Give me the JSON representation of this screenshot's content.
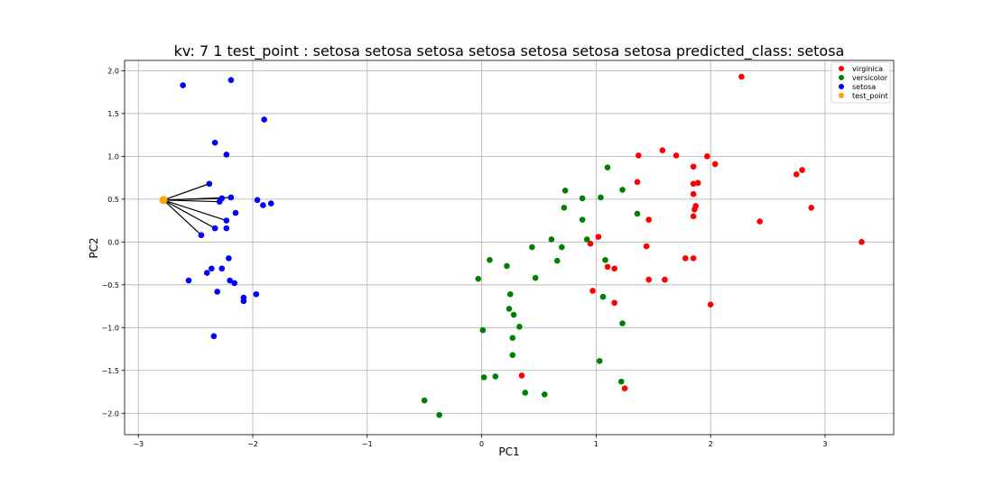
{
  "chart_data": {
    "type": "scatter",
    "title": "kv: 7 1 test_point : setosa setosa setosa setosa setosa setosa setosa   predicted_class: setosa",
    "xlabel": "PC1",
    "ylabel": "PC2",
    "xlim": [
      -3.12,
      3.6
    ],
    "ylim": [
      -2.25,
      2.12
    ],
    "xticks": [
      -3,
      -2,
      -1,
      0,
      1,
      2,
      3
    ],
    "yticks": [
      -2.0,
      -1.5,
      -1.0,
      -0.5,
      0.0,
      0.5,
      1.0,
      1.5,
      2.0
    ],
    "xtick_labels": [
      "−3",
      "−2",
      "−1",
      "0",
      "1",
      "2",
      "3"
    ],
    "ytick_labels": [
      "−2.0",
      "−1.5",
      "−1.0",
      "−0.5",
      "0.0",
      "0.5",
      "1.0",
      "1.5",
      "2.0"
    ],
    "grid": true,
    "legend_position": "top-right",
    "series": [
      {
        "name": "virginica",
        "color": "#ff0000",
        "points": [
          [
            2.27,
            1.93
          ],
          [
            1.58,
            1.07
          ],
          [
            1.7,
            1.01
          ],
          [
            1.37,
            1.01
          ],
          [
            1.97,
            1.0
          ],
          [
            2.04,
            0.91
          ],
          [
            1.85,
            0.88
          ],
          [
            2.8,
            0.84
          ],
          [
            2.75,
            0.79
          ],
          [
            1.36,
            0.7
          ],
          [
            1.89,
            0.69
          ],
          [
            1.85,
            0.68
          ],
          [
            1.85,
            0.56
          ],
          [
            1.87,
            0.42
          ],
          [
            1.86,
            0.38
          ],
          [
            2.88,
            0.4
          ],
          [
            1.85,
            0.3
          ],
          [
            1.46,
            0.26
          ],
          [
            2.43,
            0.24
          ],
          [
            1.02,
            0.06
          ],
          [
            0.95,
            -0.02
          ],
          [
            3.32,
            0.0
          ],
          [
            1.44,
            -0.05
          ],
          [
            1.78,
            -0.19
          ],
          [
            1.85,
            -0.19
          ],
          [
            1.1,
            -0.29
          ],
          [
            1.16,
            -0.31
          ],
          [
            1.46,
            -0.44
          ],
          [
            1.6,
            -0.44
          ],
          [
            0.97,
            -0.57
          ],
          [
            1.16,
            -0.71
          ],
          [
            2.0,
            -0.73
          ],
          [
            0.35,
            -1.56
          ],
          [
            1.25,
            -1.71
          ]
        ]
      },
      {
        "name": "versicolor",
        "color": "#008000",
        "points": [
          [
            1.1,
            0.87
          ],
          [
            0.73,
            0.6
          ],
          [
            1.23,
            0.61
          ],
          [
            0.88,
            0.51
          ],
          [
            1.04,
            0.52
          ],
          [
            0.72,
            0.4
          ],
          [
            1.36,
            0.33
          ],
          [
            0.88,
            0.26
          ],
          [
            0.61,
            0.03
          ],
          [
            0.92,
            0.03
          ],
          [
            0.44,
            -0.06
          ],
          [
            0.7,
            -0.06
          ],
          [
            1.08,
            -0.21
          ],
          [
            0.07,
            -0.21
          ],
          [
            0.66,
            -0.22
          ],
          [
            0.22,
            -0.28
          ],
          [
            -0.03,
            -0.43
          ],
          [
            0.47,
            -0.42
          ],
          [
            0.25,
            -0.61
          ],
          [
            1.06,
            -0.64
          ],
          [
            0.24,
            -0.78
          ],
          [
            0.28,
            -0.85
          ],
          [
            1.23,
            -0.95
          ],
          [
            0.33,
            -0.99
          ],
          [
            0.01,
            -1.03
          ],
          [
            0.27,
            -1.12
          ],
          [
            0.27,
            -1.32
          ],
          [
            1.03,
            -1.39
          ],
          [
            0.12,
            -1.57
          ],
          [
            0.02,
            -1.58
          ],
          [
            1.22,
            -1.63
          ],
          [
            0.38,
            -1.76
          ],
          [
            0.55,
            -1.78
          ],
          [
            -0.5,
            -1.85
          ],
          [
            -0.37,
            -2.02
          ]
        ]
      },
      {
        "name": "setosa",
        "color": "#0000ff",
        "points": [
          [
            -2.61,
            1.83
          ],
          [
            -2.19,
            1.89
          ],
          [
            -1.9,
            1.43
          ],
          [
            -2.33,
            1.16
          ],
          [
            -2.23,
            1.02
          ],
          [
            -2.38,
            0.68
          ],
          [
            -2.27,
            0.51
          ],
          [
            -2.19,
            0.52
          ],
          [
            -1.96,
            0.49
          ],
          [
            -2.29,
            0.47
          ],
          [
            -1.84,
            0.45
          ],
          [
            -1.91,
            0.43
          ],
          [
            -2.15,
            0.34
          ],
          [
            -2.23,
            0.25
          ],
          [
            -2.33,
            0.16
          ],
          [
            -2.23,
            0.16
          ],
          [
            -2.45,
            0.08
          ],
          [
            -2.21,
            -0.19
          ],
          [
            -2.27,
            -0.31
          ],
          [
            -2.36,
            -0.31
          ],
          [
            -2.4,
            -0.36
          ],
          [
            -2.56,
            -0.45
          ],
          [
            -2.2,
            -0.45
          ],
          [
            -2.16,
            -0.48
          ],
          [
            -1.97,
            -0.61
          ],
          [
            -2.31,
            -0.58
          ],
          [
            -2.08,
            -0.65
          ],
          [
            -2.08,
            -0.69
          ],
          [
            -2.34,
            -1.1
          ]
        ]
      },
      {
        "name": "test_point",
        "color": "#ffa500",
        "points": [
          [
            -2.78,
            0.49
          ]
        ]
      }
    ],
    "neighbor_lines": {
      "from": [
        -2.78,
        0.49
      ],
      "to": [
        [
          -2.38,
          0.68
        ],
        [
          -2.27,
          0.51
        ],
        [
          -2.19,
          0.52
        ],
        [
          -2.29,
          0.47
        ],
        [
          -2.23,
          0.25
        ],
        [
          -2.33,
          0.16
        ],
        [
          -2.45,
          0.08
        ]
      ],
      "color": "#000000"
    }
  }
}
